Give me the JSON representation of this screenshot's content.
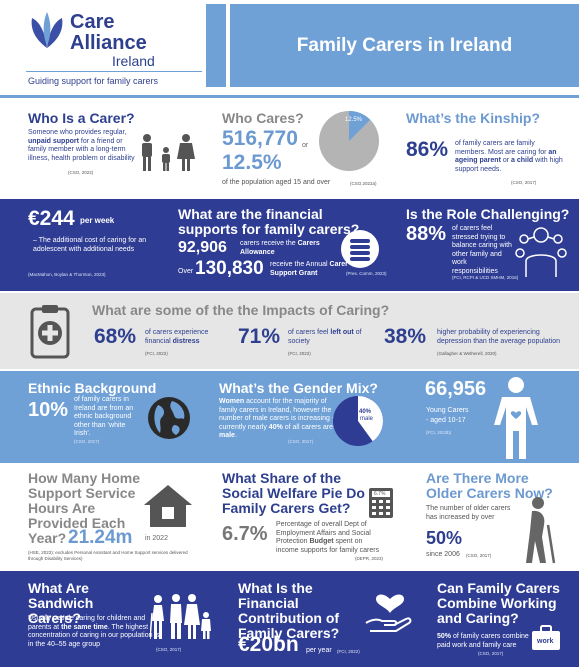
{
  "header": {
    "logo_care": "Care",
    "logo_alliance": "Alliance",
    "logo_ireland": "Ireland",
    "tagline": "Guiding support for family carers",
    "title": "Family Carers in Ireland"
  },
  "row1": {
    "carer": {
      "heading": "Who Is a Carer?",
      "text_pre": "Someone who provides regular, ",
      "text_bold": "unpaid support",
      "text_post": " for a friend or family member with a long-term illness, health problem or disability",
      "source": "(CSO, 2022)"
    },
    "cares": {
      "heading": "Who Cares?",
      "count": "516,770",
      "or": "or",
      "pct": "12.5%",
      "caption": "of the population aged 15 and over",
      "pie_label": "12.5%",
      "pie_value": 12.5,
      "source": "(CSO,2022a)"
    },
    "kinship": {
      "heading": "What’s the Kinship?",
      "pct": "86%",
      "text_a": "of family carers are family members. Most are caring for ",
      "bold_a": "an ageing parent",
      "text_b": " or ",
      "bold_b": "a child",
      "text_c": " with high support needs.",
      "source": "(CSO, 2017)"
    }
  },
  "row2": {
    "cost": {
      "amount": "€244",
      "unit": "per week",
      "text": "– The additional cost of caring for an adolescent with additional needs",
      "source": "(MacMahon, Boylan & Thornton, 2023)"
    },
    "supports": {
      "heading": "What are the financial supports for family carers?",
      "num1": "92,906",
      "text1": "carers receive the ",
      "bold1": "Carers Allowance",
      "over": "Over",
      "num2": "130,830",
      "text2": "receive the Annual ",
      "bold2": "Carer Support Grant",
      "source": "(Pres. Comm, 2023)"
    },
    "challenging": {
      "heading": "Is the Role Challenging?",
      "pct": "88%",
      "text": "of carers feel stressed trying to balance caring with other family and work responsibilities",
      "source": "(FCI, RCPI & UCD SMHM, 2016)"
    }
  },
  "row3": {
    "heading": "What are some of the the Impacts of Caring?",
    "stat1": {
      "pct": "68%",
      "text": "of carers experience financial ",
      "bold": "distress",
      "source": "(FCI, 2022)"
    },
    "stat2": {
      "pct": "71%",
      "text": "of carers feel ",
      "bold": "left out",
      "text2": " of society",
      "source": "(FCI, 2022)"
    },
    "stat3": {
      "pct": "38%",
      "text": "higher probability of experiencing depression than the average population",
      "source": "(Gallagher & Wetherell, 2020)"
    }
  },
  "row4": {
    "ethnic": {
      "heading": "Ethnic Background",
      "pct": "10%",
      "text": "of family carers in Ireland are from an ethnic background other than ‘white Irish’.",
      "source": "(CSO, 2017)"
    },
    "gender": {
      "heading": "What’s the Gender Mix?",
      "bold1": "Women",
      "text1": " account for the majority of family carers in Ireland, however the number of male carers is increasing - currently nearly ",
      "bold2": "40%",
      "text2": " of all carers are ",
      "bold3": "male",
      "text3": ".",
      "pie_label_pct": "40%",
      "pie_label_name": "male",
      "pie_value": 40,
      "source": "(CSO, 2017)"
    },
    "young": {
      "count": "66,956",
      "label": "Young Carers",
      "age": "- aged 10-17",
      "source": "(FCI, 2023b)"
    }
  },
  "row5": {
    "hours": {
      "heading": "How Many Home Support Service Hours Are Provided Each Year?",
      "value": "21.24m",
      "year": "in 2022",
      "source": "(HSE, 2023); excludes Personal Assistant and Home Support services delivered through Disability Services)"
    },
    "welfare": {
      "heading": "What Share of the Social Welfare Pie Do Family Carers Get?",
      "pct": "6.7%",
      "calc_label": "6.7%",
      "text_a": "Percentage of overall Dept of Employment Affairs and Social Protection ",
      "bold": "Budget",
      "text_b": " spent on income supports for family carers",
      "source": "(DEPR, 2023)"
    },
    "older": {
      "heading": "Are There More Older Carers Now?",
      "text": "The number of older carers has increased by over",
      "pct": "50%",
      "since": "since 2006",
      "source": "(CSO, 2017)"
    }
  },
  "row6": {
    "sandwich": {
      "heading": "What Are Sandwich Carers?",
      "text_a": "Usually people caring for children and parents at ",
      "bold": "the same time",
      "text_b": ". The highest concentration of caring in our population is in the 40–55 age group",
      "source": "(CSO, 2017)"
    },
    "contribution": {
      "heading": "What Is the Financial Contribution of Family Carers?",
      "value": "€20bn",
      "unit": "per year",
      "source": "(FCI, 2022)"
    },
    "combine": {
      "heading": "Can Family Carers Combine Working and Caring?",
      "bold": "50%",
      "text": " of family carers combine paid work and family care",
      "source": "(CSO, 2017)",
      "icon_label": "work"
    }
  },
  "colors": {
    "navy": "#2e3c94",
    "light_blue": "#6fa0d6",
    "grey_band": "#e6e6e6",
    "text_blue": "#2d3f8e"
  }
}
